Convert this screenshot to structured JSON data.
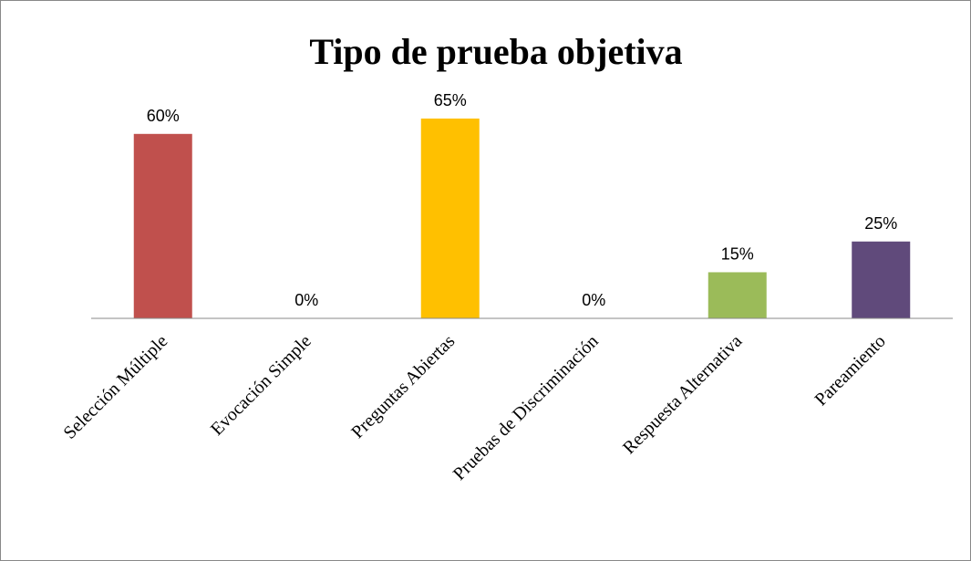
{
  "chart_data": {
    "type": "bar",
    "title": "Tipo de prueba objetiva",
    "categories": [
      "Selección Múltiple",
      "Evocación Simple",
      "Preguntas Abiertas",
      "Pruebas de Discriminación",
      "Respuesta Alternativa",
      "Pareamiento"
    ],
    "values": [
      60,
      0,
      65,
      0,
      15,
      25
    ],
    "value_labels": [
      "60%",
      "0%",
      "65%",
      "0%",
      "15%",
      "25%"
    ],
    "colors": [
      "#c0504d",
      null,
      "#ffc000",
      null,
      "#9bbb59",
      "#604a7b"
    ]
  }
}
